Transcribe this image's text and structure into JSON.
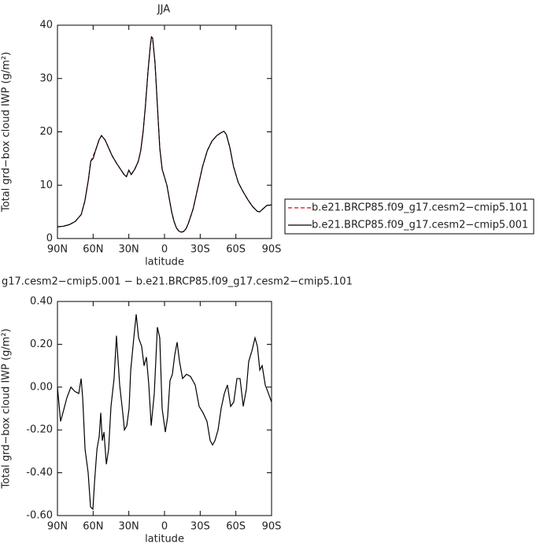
{
  "chart_data": [
    {
      "type": "line",
      "title": "JJA",
      "xlabel": "latitude",
      "ylabel": "Total grd−box cloud IWP (g/m²)",
      "xlim": [
        90,
        -90
      ],
      "ylim": [
        0,
        40
      ],
      "xticks": [
        {
          "value": 90,
          "label": "90N"
        },
        {
          "value": 60,
          "label": "60N"
        },
        {
          "value": 30,
          "label": "30N"
        },
        0,
        {
          "value": -30,
          "label": "30S"
        },
        {
          "value": -60,
          "label": "60S"
        },
        {
          "value": -90,
          "label": "90S"
        }
      ],
      "yticks": [
        0,
        10,
        20,
        30,
        40
      ],
      "legend": "right",
      "x": [
        90,
        85,
        80,
        75,
        70,
        67,
        64,
        62,
        60,
        58,
        55,
        53,
        50,
        47,
        44,
        40,
        37,
        34,
        32,
        30,
        28,
        25,
        22,
        20,
        18,
        16,
        14,
        12,
        11,
        10,
        8,
        6,
        4,
        2,
        0,
        -2,
        -4,
        -6,
        -8,
        -10,
        -12,
        -14,
        -16,
        -18,
        -20,
        -24,
        -28,
        -32,
        -36,
        -40,
        -44,
        -48,
        -50,
        -52,
        -55,
        -58,
        -62,
        -66,
        -70,
        -74,
        -78,
        -80,
        -83,
        -86,
        -90
      ],
      "series": [
        {
          "name": "b.e21.BRCP85.f09_g17.cesm2−cmip5.101",
          "color": "#e8000b",
          "dash": "dashed",
          "values": [
            2.2,
            2.3,
            2.6,
            3.2,
            4.5,
            7,
            11,
            14.5,
            15.5,
            16.5,
            18.5,
            19.3,
            18.5,
            17,
            15.5,
            14,
            13,
            12,
            11.6,
            12.8,
            12,
            13,
            14.5,
            16.5,
            20,
            25,
            31,
            36,
            37.8,
            37.6,
            33,
            25,
            17,
            13,
            11.5,
            10,
            7.5,
            5,
            3.2,
            2,
            1.4,
            1.2,
            1.3,
            1.8,
            2.8,
            5.5,
            9.5,
            13.5,
            16.5,
            18.3,
            19.3,
            19.9,
            20.1,
            19.5,
            17,
            13.5,
            10.5,
            8.8,
            7.3,
            6,
            5.1,
            5,
            5.6,
            6.2,
            6.3
          ]
        },
        {
          "name": "b.e21.BRCP85.f09_g17.cesm2−cmip5.001",
          "color": "#000000",
          "dash": "solid",
          "values": [
            2.2,
            2.3,
            2.6,
            3.2,
            4.5,
            7,
            11,
            14.5,
            15,
            16.5,
            18.5,
            19.3,
            18.5,
            17,
            15.5,
            14,
            13,
            12,
            11.6,
            12.8,
            12,
            13,
            14.5,
            16.5,
            20,
            25,
            31,
            36,
            37.8,
            37.6,
            33,
            25,
            17,
            13,
            11.5,
            10,
            7.5,
            5,
            3.2,
            2,
            1.4,
            1.2,
            1.3,
            1.8,
            2.8,
            5.5,
            9.5,
            13.5,
            16.5,
            18.3,
            19.3,
            19.9,
            20.1,
            19.5,
            17,
            13.5,
            10.5,
            8.8,
            7.3,
            6,
            5.1,
            5,
            5.6,
            6.2,
            6.3
          ]
        }
      ]
    },
    {
      "type": "line",
      "title": "g17.cesm2−cmip5.001 − b.e21.BRCP85.f09_g17.cesm2−cmip5.101",
      "xlabel": "latitude",
      "ylabel": "Total grd−box cloud IWP (g/m²)",
      "xlim": [
        90,
        -90
      ],
      "ylim": [
        -0.6,
        0.4
      ],
      "xticks": [
        {
          "value": 90,
          "label": "90N"
        },
        {
          "value": 60,
          "label": "60N"
        },
        {
          "value": 30,
          "label": "30N"
        },
        0,
        {
          "value": -30,
          "label": "30S"
        },
        {
          "value": -60,
          "label": "60S"
        },
        {
          "value": -90,
          "label": "90S"
        }
      ],
      "yticks": [
        {
          "value": -0.6,
          "label": "-0.60"
        },
        {
          "value": -0.4,
          "label": "-0.40"
        },
        {
          "value": -0.2,
          "label": "-0.20"
        },
        {
          "value": 0,
          "label": "0.00"
        },
        {
          "value": 0.2,
          "label": "0.20"
        },
        {
          "value": 0.4,
          "label": "0.40"
        }
      ],
      "x": [
        90,
        87.4,
        85.4,
        82.1,
        78.7,
        75.4,
        72.1,
        70.1,
        68.8,
        66.8,
        64.2,
        62.2,
        60.2,
        58.8,
        56.8,
        54.9,
        53.6,
        52.3,
        50.9,
        48.9,
        47.0,
        45.0,
        42.4,
        40.4,
        37.7,
        35.1,
        33.7,
        31.7,
        29.8,
        28.4,
        25.8,
        23.8,
        21.8,
        19.2,
        17.2,
        15.2,
        13.2,
        11.2,
        8.6,
        6.0,
        4.0,
        2.0,
        -0.7,
        -2.6,
        -4.6,
        -6.6,
        -8.6,
        -10.6,
        -12.6,
        -15.2,
        -18.5,
        -21.8,
        -25.8,
        -29.1,
        -32.4,
        -35.7,
        -38.4,
        -40.4,
        -42.4,
        -45.0,
        -47.6,
        -50.3,
        -52.9,
        -55.6,
        -58.2,
        -60.9,
        -63.5,
        -66.2,
        -68.8,
        -70.8,
        -73.5,
        -76.1,
        -78.1,
        -80.1,
        -82.1,
        -84.7,
        -87.4,
        -90
      ],
      "series": [
        {
          "color": "#000000",
          "dash": "solid",
          "values": [
            0,
            -0.16,
            -0.12,
            -0.05,
            0,
            -0.02,
            -0.03,
            0.04,
            -0.05,
            -0.29,
            -0.4,
            -0.56,
            -0.57,
            -0.44,
            -0.29,
            -0.23,
            -0.12,
            -0.25,
            -0.21,
            -0.36,
            -0.29,
            -0.09,
            0.04,
            0.24,
            0.01,
            -0.12,
            -0.2,
            -0.18,
            -0.1,
            0.08,
            0.23,
            0.34,
            0.23,
            0.19,
            0.1,
            0.14,
            0.01,
            -0.18,
            -0.03,
            0.28,
            0.23,
            -0.1,
            -0.21,
            -0.14,
            0.03,
            0.06,
            0.15,
            0.21,
            0.12,
            0.04,
            0.06,
            0.05,
            0.01,
            -0.09,
            -0.12,
            -0.16,
            -0.25,
            -0.27,
            -0.25,
            -0.2,
            -0.1,
            -0.03,
            0.01,
            -0.09,
            -0.07,
            0.04,
            0.04,
            -0.09,
            -0.01,
            0.12,
            0.17,
            0.23,
            0.19,
            0.08,
            0.1,
            0.01,
            -0.03,
            -0.07
          ]
        }
      ]
    }
  ]
}
